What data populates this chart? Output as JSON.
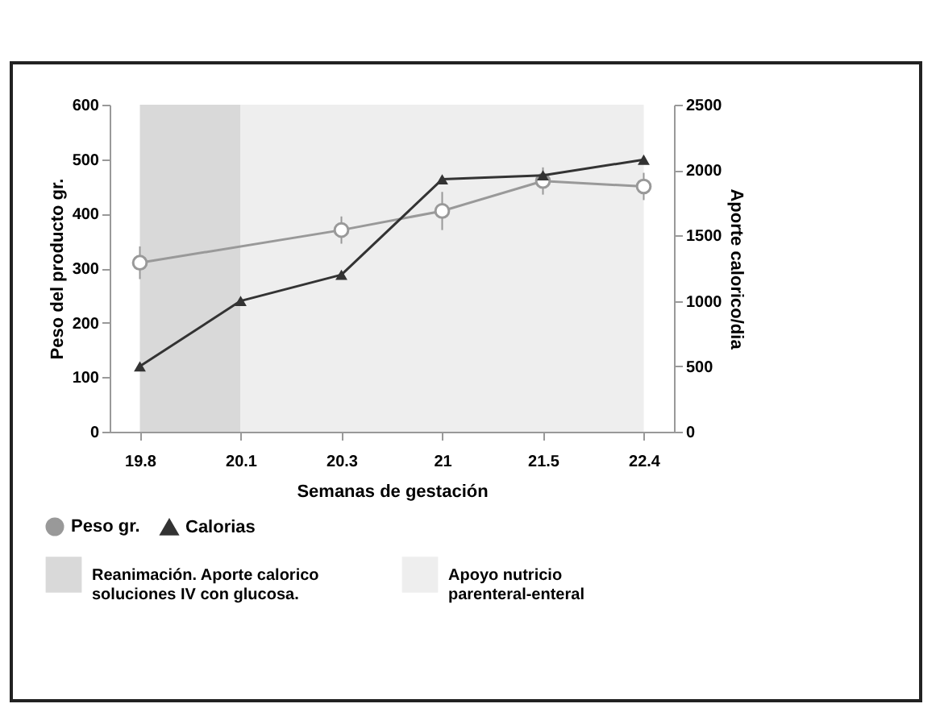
{
  "chart_data": {
    "type": "line",
    "xlabel": "Semanas de gestación",
    "ylabel": "Peso del producto gr.",
    "y2label": "Aporte calorico/dia",
    "categories": [
      "19.8",
      "20.1",
      "20.3",
      "21",
      "21.5",
      "22.4"
    ],
    "series": [
      {
        "name": "Peso gr.",
        "color": "#999999",
        "marker": "circle",
        "values": [
          310,
          null,
          370,
          405,
          460,
          450
        ],
        "errors": [
          30,
          null,
          25,
          35,
          25,
          25
        ]
      },
      {
        "name": "Calorias",
        "color": "#333333",
        "marker": "triangle",
        "axis": "y2",
        "values": [
          500,
          1000,
          1200,
          1930,
          1960,
          2080
        ]
      }
    ],
    "ylim": [
      0,
      600
    ],
    "yticks": [
      0,
      100,
      200,
      300,
      400,
      500,
      600
    ],
    "y2lim": [
      0,
      2500
    ],
    "y2ticks": [
      0,
      500,
      1000,
      1500,
      2000,
      2500
    ],
    "bands": [
      {
        "axis": "x",
        "from": "19.8",
        "to": "20.1",
        "label": "Reanimación. Aporte calorico soluciones IV con glucosa.",
        "color": "#d9d9d9"
      },
      {
        "axis": "x",
        "from": "20.1",
        "to": "22.4",
        "label": "Apoyo nutricio parenteral-enteral",
        "color": "#eeeeee"
      }
    ],
    "legend": "bottom",
    "grid": false
  }
}
